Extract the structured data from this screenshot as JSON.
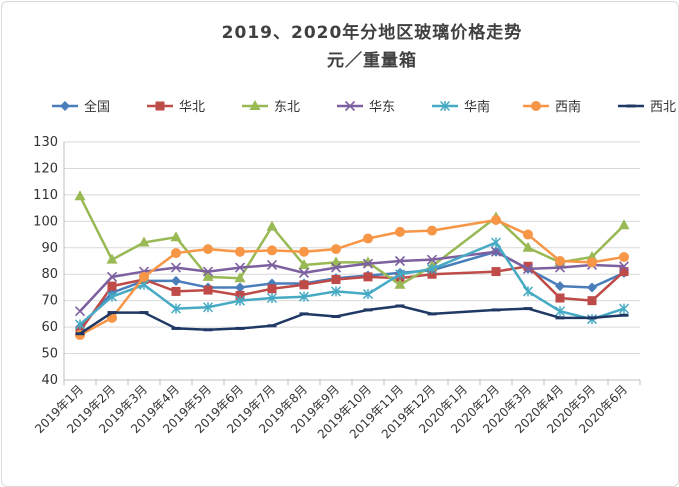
{
  "chart_data": {
    "type": "line",
    "title": "2019、2020年分地区玻璃价格走势",
    "subtitle": "元／重量箱",
    "legend_position": "top",
    "grid": true,
    "ylim": [
      40,
      130
    ],
    "yticks": [
      "130",
      "120",
      "110",
      "100",
      "90",
      "80",
      "70",
      "60",
      "50",
      "40"
    ],
    "categories": [
      "2019年1月",
      "2019年2月",
      "2019年3月",
      "2019年4月",
      "2019年5月",
      "2019年6月",
      "2019年7月",
      "2019年8月",
      "2019年9月",
      "2019年10月",
      "2019年11月",
      "2019年12月",
      "2020年1月",
      "2020年2月",
      "2020年3月",
      "2020年4月",
      "2020年5月",
      "2020年6月"
    ],
    "series": [
      {
        "name": "全国",
        "color": "#4a7ebb",
        "marker": "diamond",
        "values": [
          60,
          73,
          77.5,
          77.5,
          75,
          75,
          76.5,
          76.5,
          78.5,
          79.5,
          80.5,
          81.5,
          null,
          88.5,
          82,
          75.5,
          75,
          80.5
        ]
      },
      {
        "name": "华北",
        "color": "#be4b48",
        "marker": "square",
        "values": [
          58.5,
          75.5,
          78,
          73.5,
          74,
          72,
          74.5,
          76,
          78,
          79,
          78.5,
          80,
          null,
          81,
          83,
          71,
          70,
          81
        ]
      },
      {
        "name": "东北",
        "color": "#98b954",
        "marker": "triangle",
        "values": [
          109.5,
          85.5,
          92,
          94,
          79,
          78.5,
          98,
          83.5,
          84.5,
          84.5,
          76,
          83,
          null,
          101.5,
          90,
          84.5,
          86.5,
          98.5
        ]
      },
      {
        "name": "华东",
        "color": "#7d60a0",
        "marker": "x",
        "values": [
          66,
          79,
          81,
          82.5,
          81,
          82.5,
          83.5,
          80.5,
          82.5,
          84,
          85,
          85.5,
          null,
          88.5,
          82,
          82.5,
          83.5,
          83
        ]
      },
      {
        "name": "华南",
        "color": "#46aac5",
        "marker": "star",
        "values": [
          61,
          71.5,
          76,
          67,
          67.5,
          70,
          71,
          71.5,
          73.5,
          72.5,
          80,
          82,
          null,
          92,
          73.5,
          66,
          63,
          67
        ]
      },
      {
        "name": "西南",
        "color": "#f79646",
        "marker": "circle",
        "values": [
          57,
          63.5,
          79,
          88,
          89.5,
          88.5,
          89,
          88.5,
          89.5,
          93.5,
          96,
          96.5,
          null,
          100.5,
          95,
          85,
          84.5,
          86.5
        ]
      },
      {
        "name": "西北",
        "color": "#1f3864",
        "marker": "dash",
        "values": [
          57.5,
          65.5,
          65.5,
          59.5,
          59,
          59.5,
          60.5,
          65,
          64,
          66.5,
          68,
          65,
          null,
          66.5,
          67,
          63.5,
          63.5,
          64.5
        ]
      }
    ]
  }
}
